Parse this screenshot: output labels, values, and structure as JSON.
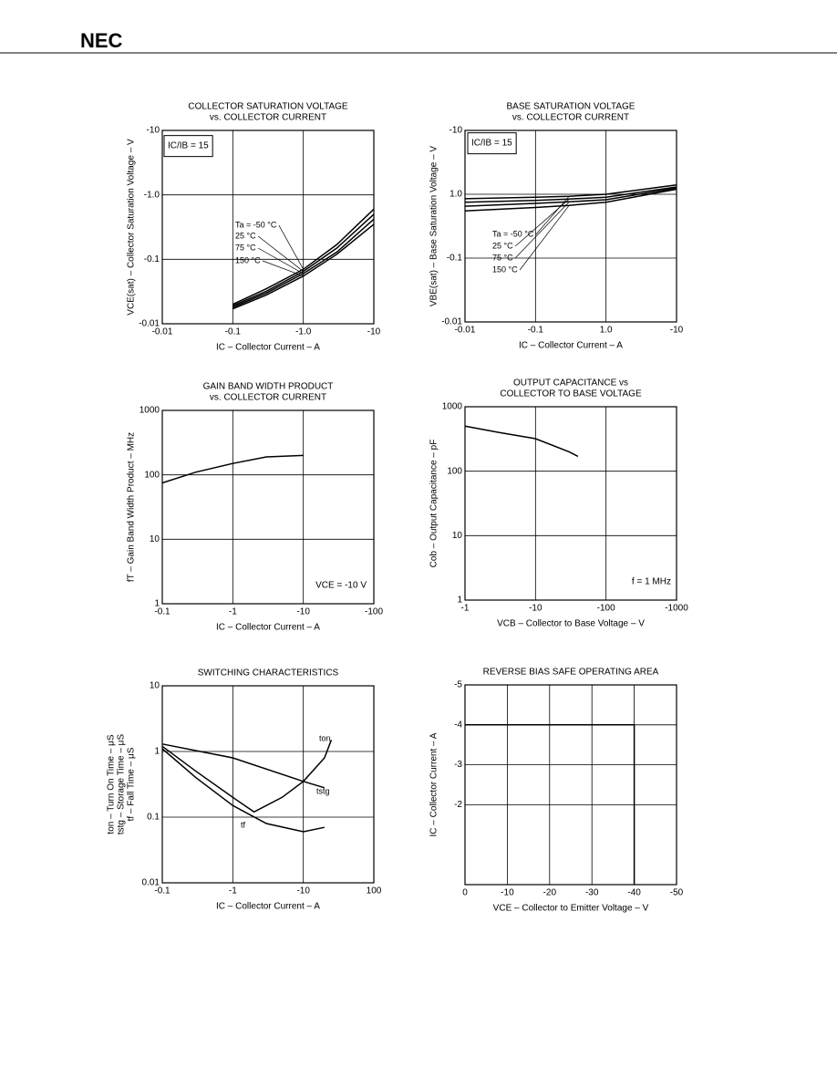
{
  "header": {
    "logo": "NEC"
  },
  "chart_data": [
    {
      "type": "line",
      "title": [
        "COLLECTOR SATURATION VOLTAGE",
        "vs. COLLECTOR CURRENT"
      ],
      "xlabel": "IC – Collector Current – A",
      "ylabel": [
        "VCE(sat) – Collector Saturation Voltage – V"
      ],
      "annotation": "IC/IB = 15",
      "color": "#000000",
      "xscale": "log",
      "yscale": "log",
      "xlim": [
        -0.01,
        -10
      ],
      "ylim": [
        -0.01,
        -10
      ],
      "xticks": [
        -0.01,
        -0.1,
        {
          "value": -1,
          "label": "-1.0"
        },
        -10
      ],
      "yticks": [
        -0.01,
        -0.1,
        {
          "value": -1,
          "label": "-1.0"
        },
        -10
      ],
      "series": [
        {
          "name": "Ta = -50 °C",
          "x": [
            -0.1,
            -0.3,
            -1,
            -3,
            -10
          ],
          "values": [
            -0.02,
            -0.035,
            -0.07,
            -0.17,
            -0.6
          ]
        },
        {
          "name": "25 °C",
          "x": [
            -0.1,
            -0.3,
            -1,
            -3,
            -10
          ],
          "values": [
            -0.019,
            -0.032,
            -0.065,
            -0.15,
            -0.5
          ]
        },
        {
          "name": "75 °C",
          "x": [
            -0.1,
            -0.3,
            -1,
            -3,
            -10
          ],
          "values": [
            -0.018,
            -0.03,
            -0.06,
            -0.13,
            -0.42
          ]
        },
        {
          "name": "150 °C",
          "x": [
            -0.1,
            -0.3,
            -1,
            -3,
            -10
          ],
          "values": [
            -0.017,
            -0.028,
            -0.055,
            -0.12,
            -0.35
          ]
        }
      ]
    },
    {
      "type": "line",
      "title": [
        "BASE SATURATION VOLTAGE",
        "vs. COLLECTOR CURRENT"
      ],
      "xlabel": "IC – Collector Current – A",
      "ylabel": [
        "VBE(sat) – Base Saturation Voltage – V"
      ],
      "annotation": "IC/IB = 15",
      "color": "#000000",
      "xscale": "log",
      "yscale": "log",
      "xlim": [
        -0.01,
        -10
      ],
      "ylim": [
        -0.01,
        -10
      ],
      "xticks": [
        -0.01,
        -0.1,
        {
          "value": -1,
          "label": "1.0"
        },
        -10
      ],
      "yticks": [
        {
          "value": -0.01,
          "label": "-0.01"
        },
        -0.1,
        {
          "value": -1,
          "label": "1.0"
        },
        -10
      ],
      "series": [
        {
          "name": "Ta = -50 °C",
          "x": [
            -0.01,
            -0.1,
            -0.3,
            -1,
            -10
          ],
          "values": [
            -0.85,
            -0.9,
            -0.93,
            -1.0,
            -1.4
          ]
        },
        {
          "name": "25 °C",
          "x": [
            -0.01,
            -0.1,
            -0.3,
            -1,
            -10
          ],
          "values": [
            -0.75,
            -0.8,
            -0.84,
            -0.9,
            -1.3
          ]
        },
        {
          "name": "75 °C",
          "x": [
            -0.01,
            -0.1,
            -0.3,
            -1,
            -10
          ],
          "values": [
            -0.65,
            -0.72,
            -0.76,
            -0.82,
            -1.25
          ]
        },
        {
          "name": "150 °C",
          "x": [
            -0.01,
            -0.1,
            -0.3,
            -1,
            -10
          ],
          "values": [
            -0.55,
            -0.62,
            -0.67,
            -0.75,
            -1.2
          ]
        }
      ]
    },
    {
      "type": "line",
      "title": [
        "GAIN BAND WIDTH PRODUCT",
        "vs. COLLECTOR CURRENT"
      ],
      "xlabel": "IC – Collector Current – A",
      "ylabel": [
        "fT – Gain Band Width Product – MHz"
      ],
      "annotation": "VCE = -10 V",
      "color": "#000000",
      "xscale": "log",
      "yscale": "log",
      "xlim": [
        -0.1,
        -100
      ],
      "ylim": [
        1,
        1000
      ],
      "xticks": [
        -0.1,
        -1,
        -10,
        -100
      ],
      "yticks": [
        1,
        10,
        100,
        1000
      ],
      "series": [
        {
          "x": [
            -0.1,
            -0.3,
            -1,
            -3,
            -10
          ],
          "values": [
            75,
            110,
            150,
            190,
            200
          ]
        }
      ]
    },
    {
      "type": "line",
      "title": [
        "OUTPUT CAPACITANCE vs",
        "COLLECTOR TO BASE VOLTAGE"
      ],
      "xlabel": "VCB – Collector to Base Voltage – V",
      "ylabel": [
        "Cob – Output Capacitance – pF"
      ],
      "annotation": "f = 1 MHz",
      "color": "#000000",
      "xscale": "log",
      "yscale": "log",
      "xlim": [
        -1,
        -1000
      ],
      "ylim": [
        1,
        1000
      ],
      "xticks": [
        -1,
        -10,
        -100,
        -1000
      ],
      "yticks": [
        1,
        10,
        100,
        1000
      ],
      "series": [
        {
          "x": [
            -1,
            -3,
            -10,
            -30,
            -40
          ],
          "values": [
            500,
            400,
            320,
            200,
            170
          ]
        }
      ]
    },
    {
      "type": "line",
      "title": [
        "SWITCHING CHARACTERISTICS"
      ],
      "xlabel": "IC – Collector Current – A",
      "ylabel": [
        "ton – Turn On Time – μS",
        "tstg – Storage Time – μS",
        "tf – Fall Time – μS"
      ],
      "color": "#000000",
      "xscale": "log",
      "yscale": "log",
      "xlim": [
        -0.1,
        -100
      ],
      "ylim": [
        0.01,
        10
      ],
      "xticks": [
        -0.1,
        -1,
        -10,
        {
          "value": -100,
          "label": "100"
        }
      ],
      "yticks": [
        0.01,
        0.1,
        1,
        10
      ],
      "series": [
        {
          "name": "ton",
          "x": [
            -0.1,
            -0.3,
            -1,
            -2,
            -5,
            -10,
            -20,
            -25
          ],
          "values": [
            1.2,
            0.5,
            0.2,
            0.12,
            0.2,
            0.35,
            0.8,
            1.5
          ]
        },
        {
          "name": "tstg",
          "x": [
            -0.1,
            -1,
            -10,
            -20
          ],
          "values": [
            1.3,
            0.8,
            0.35,
            0.28
          ]
        },
        {
          "name": "tf",
          "x": [
            -0.1,
            -0.3,
            -1,
            -3,
            -10,
            -20
          ],
          "values": [
            1.1,
            0.4,
            0.15,
            0.08,
            0.06,
            0.07
          ]
        }
      ]
    },
    {
      "type": "line",
      "title": [
        "REVERSE BIAS SAFE OPERATING AREA"
      ],
      "xlabel": "VCE – Collector to Emitter Voltage – V",
      "ylabel": [
        "IC – Collector Current – A"
      ],
      "color": "#000000",
      "xscale": "linear",
      "yscale": "linear",
      "xlim": [
        0,
        -50
      ],
      "ylim": [
        0,
        -5
      ],
      "xticks": [
        0,
        -10,
        -20,
        -30,
        -40,
        -50
      ],
      "yticks": [
        -2,
        -3,
        -4,
        -5
      ],
      "series": [
        {
          "x": [
            0,
            -40,
            -40
          ],
          "values": [
            -4,
            -4,
            0
          ]
        }
      ]
    }
  ]
}
